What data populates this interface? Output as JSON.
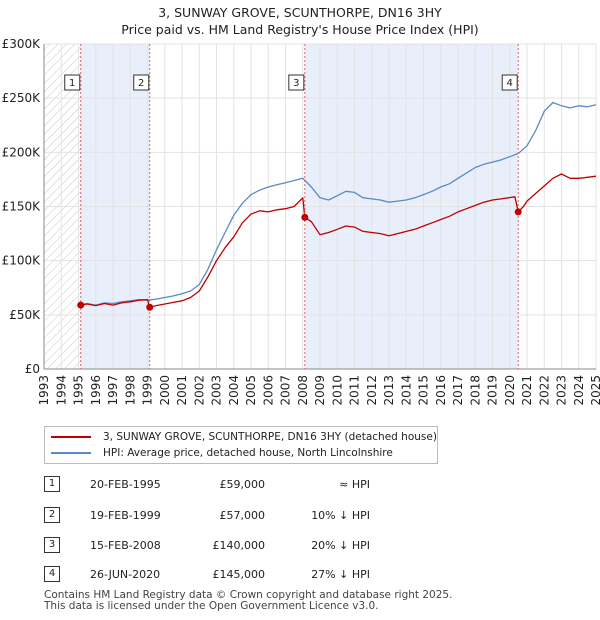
{
  "title": {
    "line1": "3, SUNWAY GROVE, SCUNTHORPE, DN16 3HY",
    "line2": "Price paid vs. HM Land Registry's House Price Index (HPI)"
  },
  "colors": {
    "property": "#c00000",
    "hpi": "#5a8ac6",
    "shade": "#e8eefa",
    "marker_line": "#e06060"
  },
  "chart_data": {
    "type": "line",
    "title": "Price paid vs. HM Land Registry's House Price Index (HPI)",
    "xlabel": "",
    "ylabel": "",
    "xlim": [
      1993,
      2025
    ],
    "ylim": [
      0,
      300000
    ],
    "y_ticks": [
      0,
      50000,
      100000,
      150000,
      200000,
      250000,
      300000
    ],
    "y_tick_labels": [
      "£0",
      "£50K",
      "£100K",
      "£150K",
      "£200K",
      "£250K",
      "£300K"
    ],
    "x_ticks": [
      1993,
      1994,
      1995,
      1996,
      1997,
      1998,
      1999,
      2000,
      2001,
      2002,
      2003,
      2004,
      2005,
      2006,
      2007,
      2008,
      2009,
      2010,
      2011,
      2012,
      2013,
      2014,
      2015,
      2016,
      2017,
      2018,
      2019,
      2020,
      2021,
      2022,
      2023,
      2024,
      2025
    ],
    "hatched_before": 1995.13,
    "shaded_ranges": [
      [
        1995.13,
        1999.13
      ],
      [
        2008.12,
        2020.49
      ]
    ],
    "series": [
      {
        "name": "3, SUNWAY GROVE, SCUNTHORPE, DN16 3HY (detached house)",
        "x": [
          1995.13,
          1995.5,
          1996,
          1996.5,
          1997,
          1997.5,
          1998,
          1998.5,
          1999.0,
          1999.13,
          1999.5,
          2000,
          2000.5,
          2001,
          2001.5,
          2002,
          2002.5,
          2003,
          2003.5,
          2004,
          2004.5,
          2005,
          2005.5,
          2006,
          2006.5,
          2007,
          2007.5,
          2008.0,
          2008.12,
          2008.5,
          2009,
          2009.5,
          2010,
          2010.5,
          2011,
          2011.5,
          2012,
          2012.5,
          2013,
          2013.5,
          2014,
          2014.5,
          2015,
          2015.5,
          2016,
          2016.5,
          2017,
          2017.5,
          2018,
          2018.5,
          2019,
          2019.5,
          2020.3,
          2020.49,
          2020.8,
          2021,
          2021.5,
          2022,
          2022.5,
          2023,
          2023.5,
          2024,
          2024.5,
          2025
        ],
        "values": [
          59000,
          60000,
          58500,
          60500,
          59000,
          61000,
          62000,
          63500,
          64000,
          57000,
          58500,
          60000,
          61500,
          63000,
          66000,
          72000,
          85000,
          100000,
          112000,
          122000,
          135000,
          143000,
          146000,
          145000,
          147000,
          148000,
          150000,
          158000,
          140000,
          136000,
          124000,
          126000,
          129000,
          132000,
          131000,
          127000,
          126000,
          125000,
          123000,
          125000,
          127000,
          129000,
          132000,
          135000,
          138000,
          141000,
          145000,
          148000,
          151000,
          154000,
          156000,
          157000,
          159000,
          145000,
          150000,
          155000,
          162000,
          169000,
          176000,
          180000,
          176000,
          176000,
          177000,
          178000
        ]
      },
      {
        "name": "HPI: Average price, detached house, North Lincolnshire",
        "x": [
          1995.13,
          1995.5,
          1996,
          1996.5,
          1997,
          1997.5,
          1998,
          1998.5,
          1999,
          1999.5,
          2000,
          2000.5,
          2001,
          2001.5,
          2002,
          2002.5,
          2003,
          2003.5,
          2004,
          2004.5,
          2005,
          2005.5,
          2006,
          2006.5,
          2007,
          2007.5,
          2008,
          2008.5,
          2009,
          2009.5,
          2010,
          2010.5,
          2011,
          2011.5,
          2012,
          2012.5,
          2013,
          2013.5,
          2014,
          2014.5,
          2015,
          2015.5,
          2016,
          2016.5,
          2017,
          2017.5,
          2018,
          2018.5,
          2019,
          2019.5,
          2020,
          2020.5,
          2021,
          2021.5,
          2022,
          2022.5,
          2023,
          2023.5,
          2024,
          2024.5,
          2025
        ],
        "values": [
          59000,
          60500,
          59000,
          61000,
          60500,
          62000,
          63000,
          64000,
          63500,
          64500,
          66000,
          67500,
          69500,
          72000,
          78000,
          92000,
          110000,
          126000,
          142000,
          153000,
          161000,
          165000,
          168000,
          170000,
          172000,
          174000,
          176000,
          168000,
          158000,
          156000,
          160000,
          164000,
          163000,
          158000,
          157000,
          156000,
          154000,
          155000,
          156000,
          158000,
          161000,
          164000,
          168000,
          171000,
          176000,
          181000,
          186000,
          189000,
          191000,
          193000,
          196000,
          199000,
          206000,
          220000,
          238000,
          246000,
          243000,
          241000,
          243000,
          242000,
          244000
        ]
      }
    ],
    "sale_markers": [
      {
        "label": "1",
        "x": 1995.13,
        "y": 59000
      },
      {
        "label": "2",
        "x": 1999.13,
        "y": 57000
      },
      {
        "label": "3",
        "x": 2008.12,
        "y": 140000
      },
      {
        "label": "4",
        "x": 2020.49,
        "y": 145000
      }
    ]
  },
  "legend": {
    "property": "3, SUNWAY GROVE, SCUNTHORPE, DN16 3HY (detached house)",
    "hpi": "HPI: Average price, detached house, North Lincolnshire"
  },
  "sales": [
    {
      "num": "1",
      "date": "20-FEB-1995",
      "price": "£59,000",
      "hpi": "≈ HPI"
    },
    {
      "num": "2",
      "date": "19-FEB-1999",
      "price": "£57,000",
      "hpi": "10% ↓ HPI"
    },
    {
      "num": "3",
      "date": "15-FEB-2008",
      "price": "£140,000",
      "hpi": "20% ↓ HPI"
    },
    {
      "num": "4",
      "date": "26-JUN-2020",
      "price": "£145,000",
      "hpi": "27% ↓ HPI"
    }
  ],
  "footer": {
    "line1": "Contains HM Land Registry data © Crown copyright and database right 2025.",
    "line2": "This data is licensed under the Open Government Licence v3.0."
  }
}
